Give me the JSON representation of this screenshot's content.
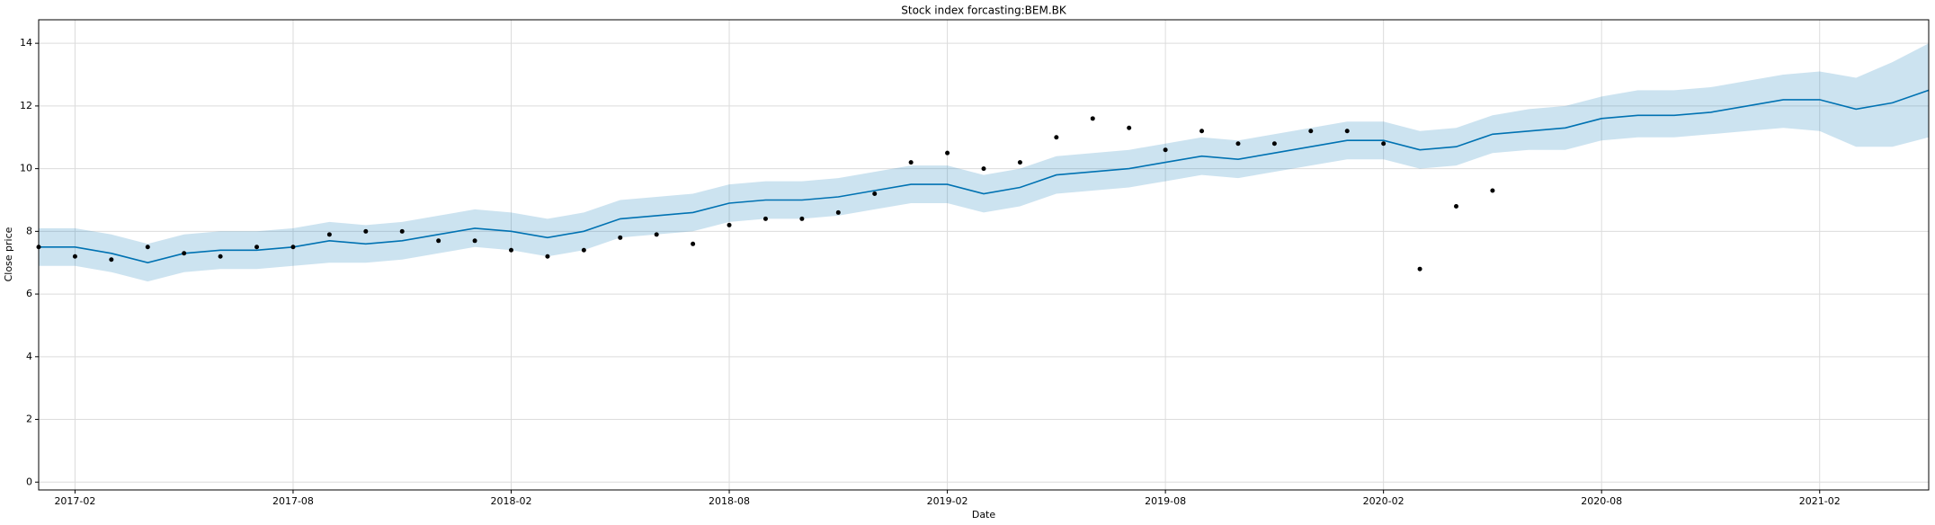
{
  "chart_data": {
    "type": "line",
    "title": "Stock index forcasting:BEM.BK",
    "xlabel": "Date",
    "ylabel": "Close price",
    "x": [
      "2017-01",
      "2017-02",
      "2017-03",
      "2017-04",
      "2017-05",
      "2017-06",
      "2017-07",
      "2017-08",
      "2017-09",
      "2017-10",
      "2017-11",
      "2017-12",
      "2018-01",
      "2018-02",
      "2018-03",
      "2018-04",
      "2018-05",
      "2018-06",
      "2018-07",
      "2018-08",
      "2018-09",
      "2018-10",
      "2018-11",
      "2018-12",
      "2019-01",
      "2019-02",
      "2019-03",
      "2019-04",
      "2019-05",
      "2019-06",
      "2019-07",
      "2019-08",
      "2019-09",
      "2019-10",
      "2019-11",
      "2019-12",
      "2020-01",
      "2020-02",
      "2020-03",
      "2020-04",
      "2020-05",
      "2020-06",
      "2020-07",
      "2020-08",
      "2020-09",
      "2020-10",
      "2020-11",
      "2020-12",
      "2021-01",
      "2021-02",
      "2021-03",
      "2021-04",
      "2021-05"
    ],
    "xlim": [
      "2017-01",
      "2021-05"
    ],
    "xticks": [
      "2017-02",
      "2017-08",
      "2018-02",
      "2018-08",
      "2019-02",
      "2019-08",
      "2020-02",
      "2020-08",
      "2021-02"
    ],
    "ylim": [
      -0.25,
      14.75
    ],
    "yticks": [
      0,
      2,
      4,
      6,
      8,
      10,
      12,
      14
    ],
    "grid": true,
    "band": {
      "color": "#0072B2",
      "opacity": 0.2,
      "lower": [
        6.9,
        6.9,
        6.7,
        6.4,
        6.7,
        6.8,
        6.8,
        6.9,
        7.0,
        7.0,
        7.1,
        7.3,
        7.5,
        7.4,
        7.2,
        7.4,
        7.8,
        7.9,
        8.0,
        8.3,
        8.4,
        8.4,
        8.5,
        8.7,
        8.9,
        8.9,
        8.6,
        8.8,
        9.2,
        9.3,
        9.4,
        9.6,
        9.8,
        9.7,
        9.9,
        10.1,
        10.3,
        10.3,
        10.0,
        10.1,
        10.5,
        10.6,
        10.6,
        10.9,
        11.0,
        11.0,
        11.1,
        11.2,
        11.3,
        11.2,
        10.7,
        10.7,
        11.0
      ],
      "upper": [
        8.1,
        8.1,
        7.9,
        7.6,
        7.9,
        8.0,
        8.0,
        8.1,
        8.3,
        8.2,
        8.3,
        8.5,
        8.7,
        8.6,
        8.4,
        8.6,
        9.0,
        9.1,
        9.2,
        9.5,
        9.6,
        9.6,
        9.7,
        9.9,
        10.1,
        10.1,
        9.8,
        10.0,
        10.4,
        10.5,
        10.6,
        10.8,
        11.0,
        10.9,
        11.1,
        11.3,
        11.5,
        11.5,
        11.2,
        11.3,
        11.7,
        11.9,
        12.0,
        12.3,
        12.5,
        12.5,
        12.6,
        12.8,
        13.0,
        13.1,
        12.9,
        13.4,
        14.0
      ]
    },
    "series": [
      {
        "color": "#0072B2",
        "values": [
          7.5,
          7.5,
          7.3,
          7.0,
          7.3,
          7.4,
          7.4,
          7.5,
          7.7,
          7.6,
          7.7,
          7.9,
          8.1,
          8.0,
          7.8,
          8.0,
          8.4,
          8.5,
          8.6,
          8.9,
          9.0,
          9.0,
          9.1,
          9.3,
          9.5,
          9.5,
          9.2,
          9.4,
          9.8,
          9.9,
          10.0,
          10.2,
          10.4,
          10.3,
          10.5,
          10.7,
          10.9,
          10.9,
          10.6,
          10.7,
          11.1,
          11.2,
          11.3,
          11.6,
          11.7,
          11.7,
          11.8,
          12.0,
          12.2,
          12.2,
          11.9,
          12.1,
          12.5
        ]
      }
    ],
    "points": {
      "color": "#000000",
      "values": [
        7.5,
        7.2,
        7.1,
        7.5,
        7.3,
        7.2,
        7.5,
        7.5,
        7.9,
        8.0,
        8.0,
        7.7,
        7.7,
        7.4,
        7.2,
        7.4,
        7.8,
        7.9,
        7.6,
        8.2,
        8.4,
        8.4,
        8.6,
        9.2,
        10.2,
        10.5,
        10.0,
        10.2,
        11.0,
        11.6,
        11.3,
        10.6,
        11.2,
        10.8,
        10.8,
        11.2,
        11.2,
        10.8,
        6.8,
        8.8,
        9.3,
        null,
        null,
        null,
        null,
        null,
        null,
        null,
        null,
        null,
        null,
        null,
        null
      ]
    }
  }
}
